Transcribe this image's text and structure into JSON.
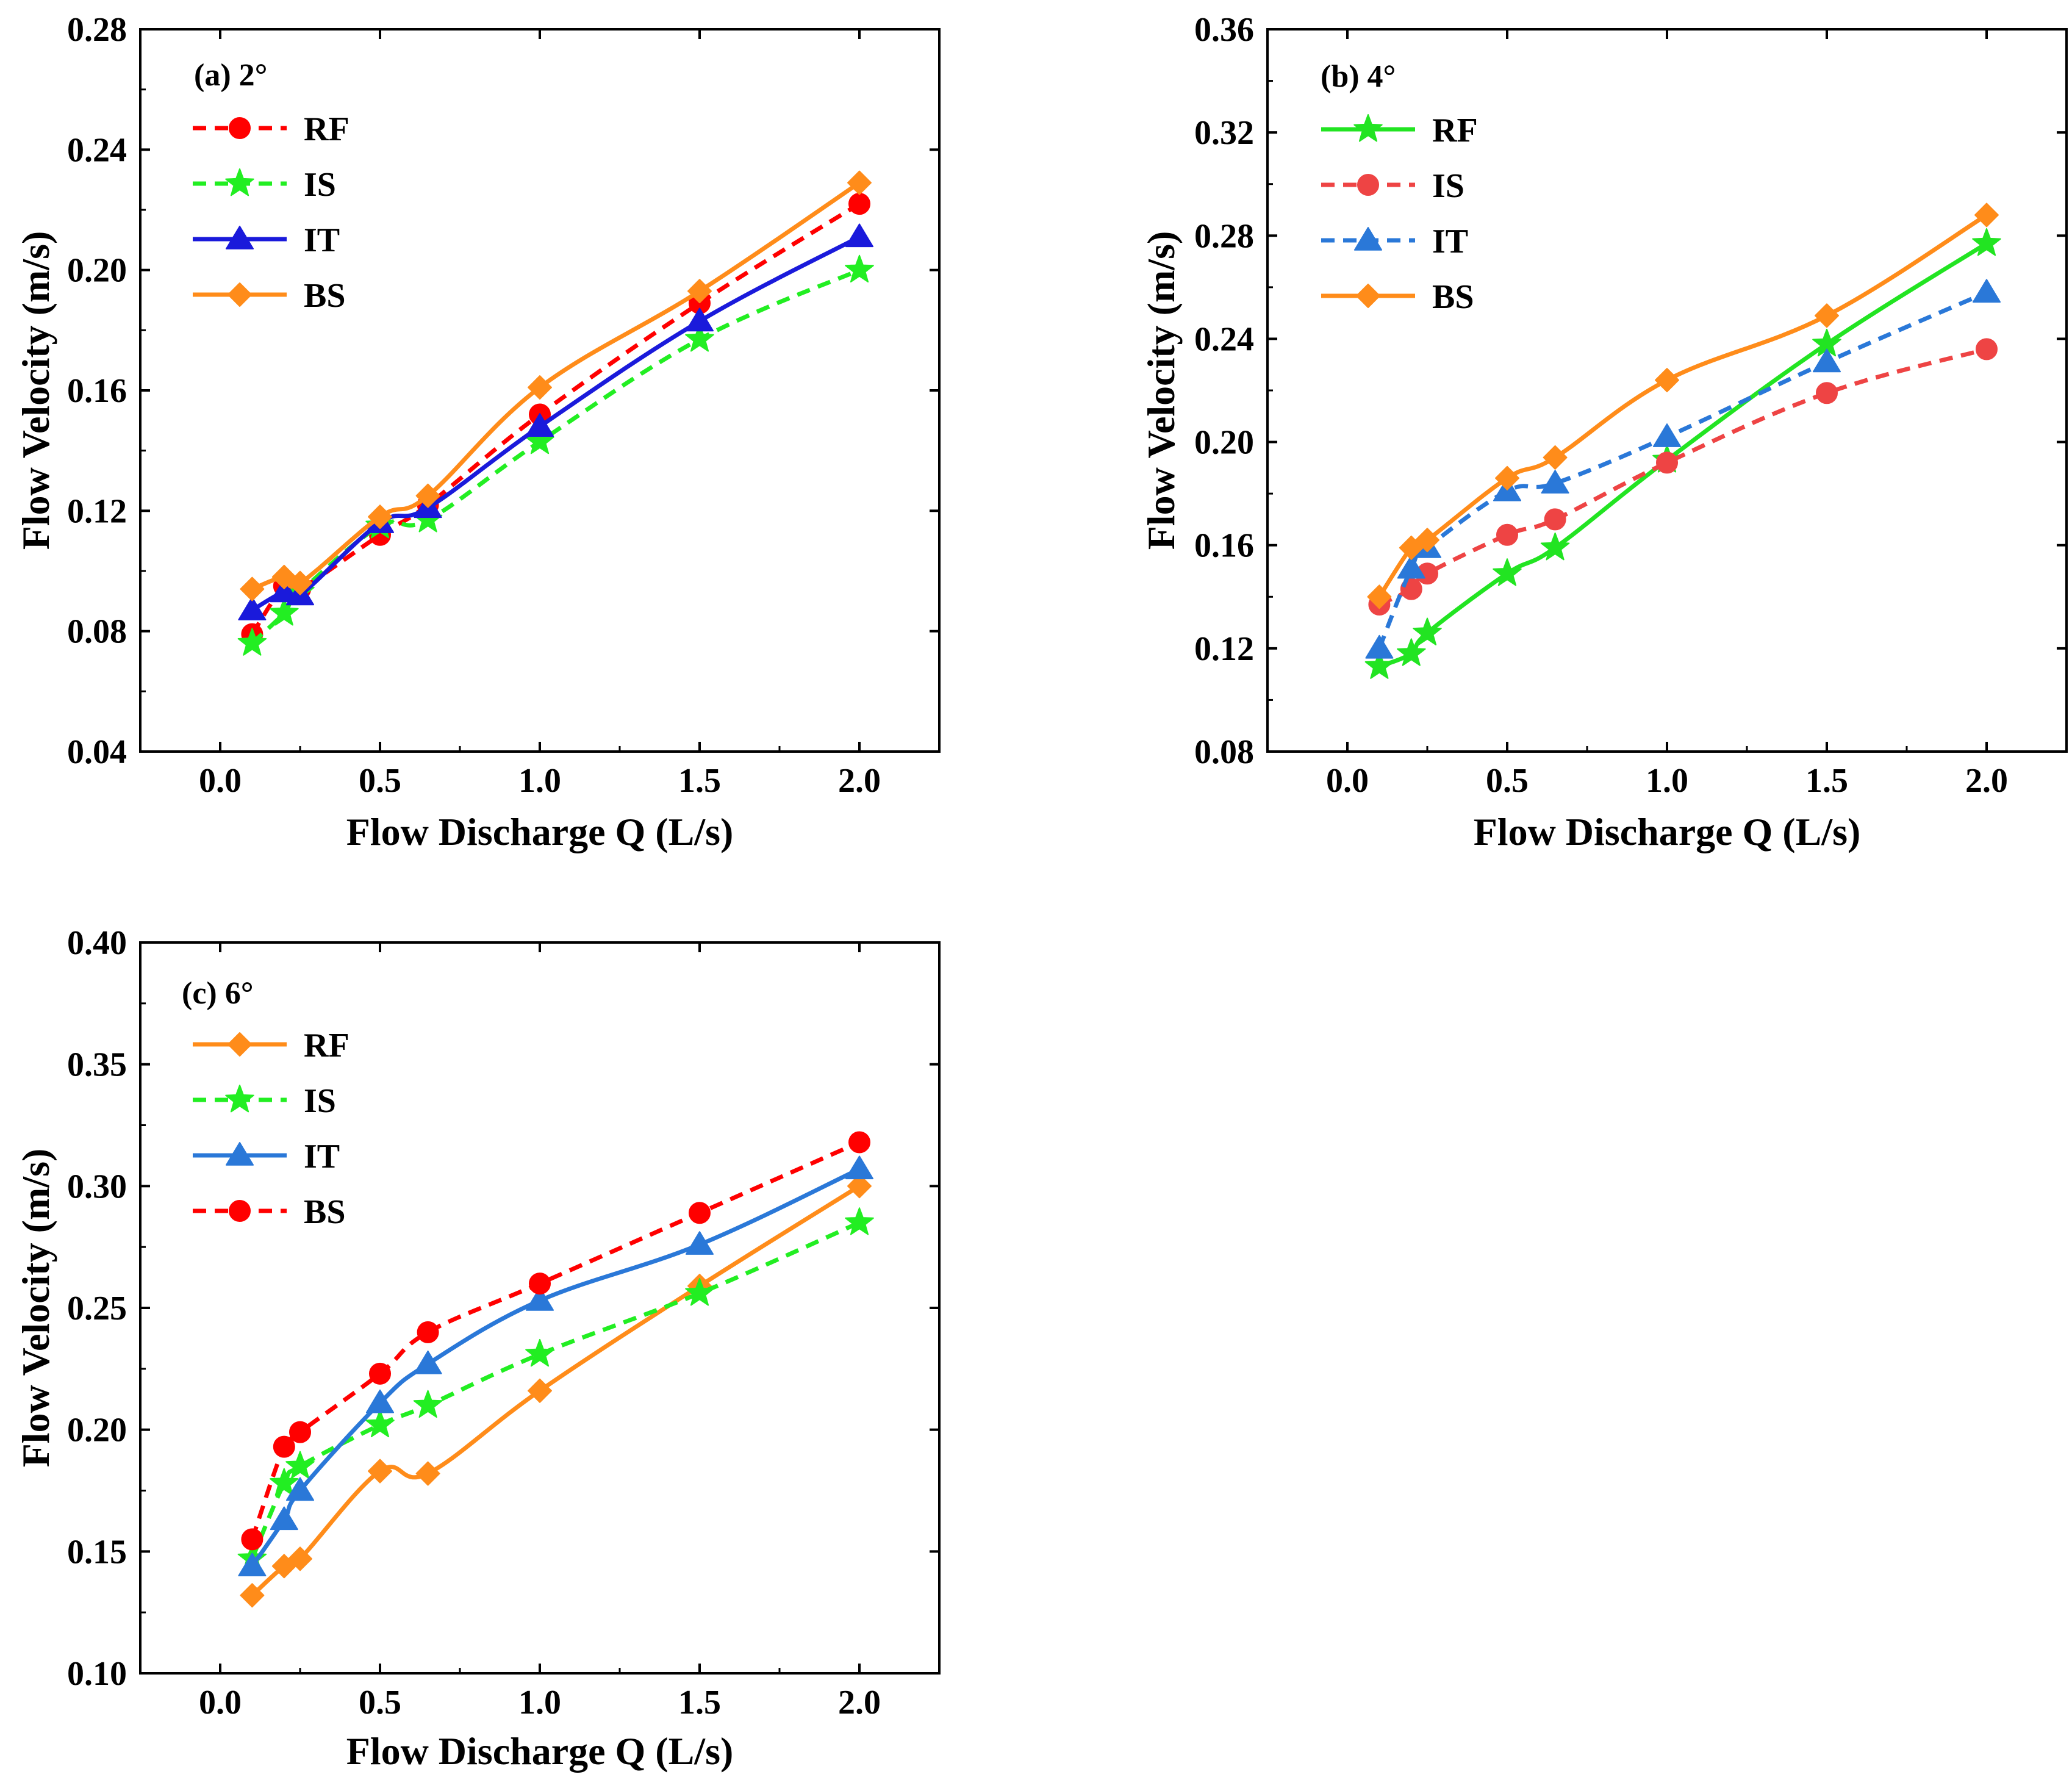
{
  "figure": {
    "background": "#ffffff"
  },
  "colors": {
    "RF": {
      "a": "#ff0000",
      "b": "#22e422",
      "c": "#ff8c1a"
    },
    "IS": {
      "a": "#22ee22",
      "b": "#ee4444",
      "c": "#22ee22"
    },
    "IT": {
      "a": "#1a1adb",
      "b": "#2a78d8",
      "c": "#2a78d8"
    },
    "BS": {
      "a": "#ff8c1a",
      "b": "#ff8c1a",
      "c": "#ff0000"
    }
  },
  "chart_data": [
    {
      "type": "line",
      "panel_label": "(a)  2°",
      "xlabel": "Flow Discharge Q (L/s)",
      "ylabel": "Flow Velocity (m/s)",
      "xlim": [
        -0.25,
        2.25
      ],
      "ylim": [
        0.04,
        0.28
      ],
      "xticks": [
        0.0,
        0.5,
        1.0,
        1.5,
        2.0
      ],
      "xtick_labels": [
        "0.0",
        "0.5",
        "1.0",
        "1.5",
        "2.0"
      ],
      "yticks": [
        0.04,
        0.08,
        0.12,
        0.16,
        0.2,
        0.24,
        0.28
      ],
      "ytick_labels": [
        "0.04",
        "0.08",
        "0.12",
        "0.16",
        "0.20",
        "0.24",
        "0.28"
      ],
      "grid": false,
      "legend_position": "top-left",
      "x": [
        0.1,
        0.2,
        0.25,
        0.5,
        0.65,
        1.0,
        1.5,
        2.0
      ],
      "series": [
        {
          "name": "RF",
          "marker": "circle",
          "dash": true,
          "color": "#ff0000",
          "values": [
            0.079,
            0.095,
            0.094,
            0.112,
            0.122,
            0.152,
            0.189,
            0.222
          ]
        },
        {
          "name": "IS",
          "marker": "star",
          "dash": true,
          "color": "#22ee22",
          "values": [
            0.076,
            0.086,
            0.093,
            0.115,
            0.117,
            0.143,
            0.177,
            0.2
          ]
        },
        {
          "name": "IT",
          "marker": "triangle",
          "dash": false,
          "color": "#1a1adb",
          "values": [
            0.087,
            0.093,
            0.092,
            0.116,
            0.121,
            0.148,
            0.183,
            0.211
          ]
        },
        {
          "name": "BS",
          "marker": "diamond",
          "dash": false,
          "color": "#ff8c1a",
          "values": [
            0.094,
            0.098,
            0.096,
            0.118,
            0.125,
            0.161,
            0.193,
            0.229
          ]
        }
      ]
    },
    {
      "type": "line",
      "panel_label": "(b)  4°",
      "xlabel": "Flow Discharge Q (L/s)",
      "ylabel": "Flow Velocity (m/s)",
      "xlim": [
        -0.25,
        2.25
      ],
      "ylim": [
        0.08,
        0.36
      ],
      "xticks": [
        0.0,
        0.5,
        1.0,
        1.5,
        2.0
      ],
      "xtick_labels": [
        "0.0",
        "0.5",
        "1.0",
        "1.5",
        "2.0"
      ],
      "yticks": [
        0.08,
        0.12,
        0.16,
        0.2,
        0.24,
        0.28,
        0.32,
        0.36
      ],
      "ytick_labels": [
        "0.08",
        "0.12",
        "0.16",
        "0.20",
        "0.24",
        "0.28",
        "0.32",
        "0.36"
      ],
      "grid": false,
      "legend_position": "top-left",
      "x": [
        0.1,
        0.2,
        0.25,
        0.5,
        0.65,
        1.0,
        1.5,
        2.0
      ],
      "series": [
        {
          "name": "RF",
          "marker": "star",
          "dash": false,
          "color": "#22e422",
          "values": [
            0.113,
            0.118,
            0.126,
            0.149,
            0.159,
            0.193,
            0.238,
            0.277
          ]
        },
        {
          "name": "IS",
          "marker": "circle",
          "dash": true,
          "color": "#ee4444",
          "values": [
            0.137,
            0.143,
            0.149,
            0.164,
            0.17,
            0.192,
            0.219,
            0.236
          ]
        },
        {
          "name": "IT",
          "marker": "triangle",
          "dash": true,
          "color": "#2a78d8",
          "values": [
            0.12,
            0.151,
            0.159,
            0.181,
            0.184,
            0.202,
            0.231,
            0.258
          ]
        },
        {
          "name": "BS",
          "marker": "diamond",
          "dash": false,
          "color": "#ff8c1a",
          "values": [
            0.14,
            0.159,
            0.162,
            0.186,
            0.194,
            0.224,
            0.249,
            0.288
          ]
        }
      ]
    },
    {
      "type": "line",
      "panel_label": "(c)  6°",
      "xlabel": "Flow Discharge Q (L/s)",
      "ylabel": "Flow Velocity (m/s)",
      "xlim": [
        -0.25,
        2.25
      ],
      "ylim": [
        0.1,
        0.4
      ],
      "xticks": [
        0.0,
        0.5,
        1.0,
        1.5,
        2.0
      ],
      "xtick_labels": [
        "0.0",
        "0.5",
        "1.0",
        "1.5",
        "2.0"
      ],
      "yticks": [
        0.1,
        0.15,
        0.2,
        0.25,
        0.3,
        0.35,
        0.4
      ],
      "ytick_labels": [
        "0.10",
        "0.15",
        "0.20",
        "0.25",
        "0.30",
        "0.35",
        "0.40"
      ],
      "grid": false,
      "legend_position": "top-left",
      "x": [
        0.1,
        0.2,
        0.25,
        0.5,
        0.65,
        1.0,
        1.5,
        2.0
      ],
      "series": [
        {
          "name": "RF",
          "marker": "diamond",
          "dash": false,
          "color": "#ff8c1a",
          "values": [
            0.132,
            0.144,
            0.147,
            0.183,
            0.182,
            0.216,
            0.259,
            0.3
          ]
        },
        {
          "name": "IS",
          "marker": "star",
          "dash": true,
          "color": "#22ee22",
          "values": [
            0.147,
            0.178,
            0.185,
            0.202,
            0.21,
            0.231,
            0.256,
            0.285
          ]
        },
        {
          "name": "IT",
          "marker": "triangle",
          "dash": false,
          "color": "#2a78d8",
          "values": [
            0.144,
            0.163,
            0.175,
            0.211,
            0.227,
            0.253,
            0.276,
            0.307
          ]
        },
        {
          "name": "BS",
          "marker": "circle",
          "dash": true,
          "color": "#ff0000",
          "values": [
            0.155,
            0.193,
            0.199,
            0.223,
            0.24,
            0.26,
            0.289,
            0.318
          ]
        }
      ]
    }
  ]
}
